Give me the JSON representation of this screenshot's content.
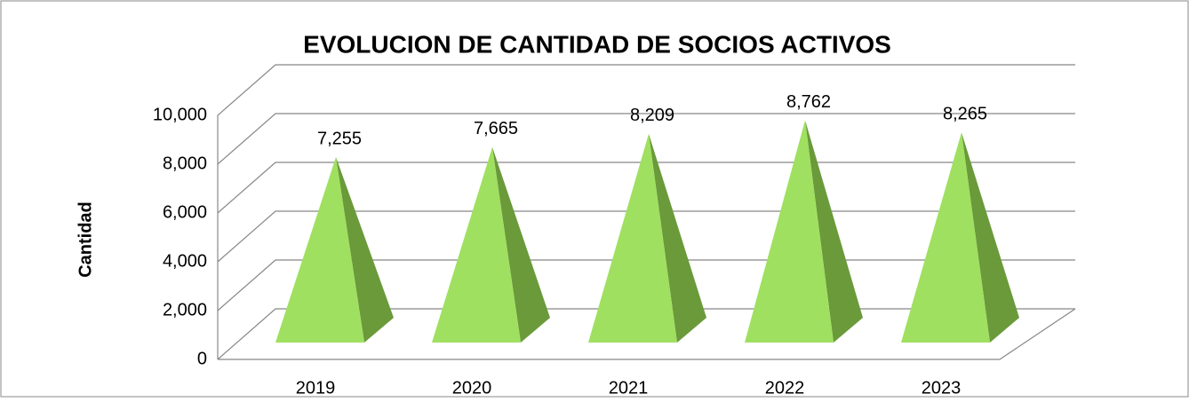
{
  "chart_data": {
    "type": "pyramid3d",
    "title": "EVOLUCION DE CANTIDAD DE SOCIOS ACTIVOS",
    "y_axis_label": "Cantidad",
    "categories": [
      "2019",
      "2020",
      "2021",
      "2022",
      "2023"
    ],
    "values": [
      7255,
      7665,
      8209,
      8762,
      8265
    ],
    "value_labels": [
      "7,255",
      "7,665",
      "8,209",
      "8,762",
      "8,265"
    ],
    "color": "#9fe060",
    "ylim": [
      0,
      10000
    ],
    "yticks": [
      0,
      {
        "value": 2000,
        "label": "2,000"
      },
      {
        "value": 4000,
        "label": "4,000"
      },
      {
        "value": 6000,
        "label": "6,000"
      },
      {
        "value": 8000,
        "label": "8,000"
      },
      {
        "value": 10000,
        "label": "10,000"
      }
    ],
    "grid": true
  }
}
